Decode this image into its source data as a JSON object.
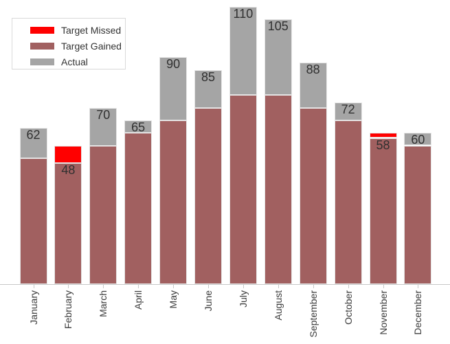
{
  "chart_data": {
    "type": "bar",
    "stacked": true,
    "categories": [
      "January",
      "February",
      "March",
      "April",
      "May",
      "June",
      "July",
      "August",
      "September",
      "October",
      "November",
      "December"
    ],
    "actual": [
      62,
      48,
      70,
      65,
      90,
      85,
      110,
      105,
      88,
      72,
      58,
      60
    ],
    "target": [
      50,
      55,
      55,
      60,
      65,
      70,
      75,
      75,
      70,
      65,
      60,
      55
    ],
    "series": [
      {
        "name": "Target Missed",
        "color": "#ff0000",
        "values": [
          0,
          7,
          0,
          0,
          0,
          0,
          0,
          0,
          0,
          0,
          2,
          0
        ]
      },
      {
        "name": "Target Gained",
        "color": "#a16060",
        "values": [
          50,
          48,
          55,
          60,
          65,
          70,
          75,
          75,
          70,
          65,
          58,
          55
        ]
      },
      {
        "name": "Actual",
        "color": "#a5a5a5",
        "values": [
          12,
          0,
          15,
          5,
          25,
          15,
          35,
          30,
          18,
          7,
          0,
          5
        ]
      }
    ],
    "stack_order_bottom_to_top": [
      "Target Gained",
      "Target Missed",
      "Actual"
    ],
    "data_labels": [
      62,
      48,
      70,
      65,
      90,
      85,
      110,
      105,
      88,
      72,
      58,
      60
    ],
    "ylim": [
      0,
      110
    ],
    "grid": false,
    "value_axis_visible": false,
    "x_tick_label_rotation": 90,
    "legend_position": "top-left"
  }
}
